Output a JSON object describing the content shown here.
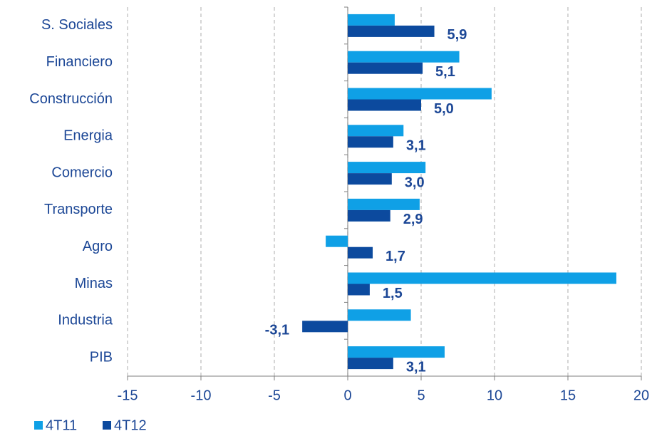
{
  "chart_data": {
    "type": "bar",
    "orientation": "horizontal",
    "categories": [
      "S. Sociales",
      "Financiero",
      "Construcción",
      "Energia",
      "Comercio",
      "Transporte",
      "Agro",
      "Minas",
      "Industria",
      "PIB"
    ],
    "series": [
      {
        "name": "4T11",
        "color": "#0fa0e6",
        "values": [
          3.2,
          7.6,
          9.8,
          3.8,
          5.3,
          4.9,
          -1.5,
          18.3,
          4.3,
          6.6
        ]
      },
      {
        "name": "4T12",
        "color": "#0c4a9e",
        "values": [
          5.9,
          5.1,
          5.0,
          3.1,
          3.0,
          2.9,
          1.7,
          1.5,
          -3.1,
          3.1
        ],
        "value_labels": [
          "5,9",
          "5,1",
          "5,0",
          "3,1",
          "3,0",
          "2,9",
          "1,7",
          "1,5",
          "-3,1",
          "3,1"
        ]
      }
    ],
    "xlim": [
      -15,
      20
    ],
    "xticks": [
      -15,
      -10,
      -5,
      0,
      5,
      10,
      15,
      20
    ],
    "grid": true,
    "legend": "bottom-left"
  }
}
